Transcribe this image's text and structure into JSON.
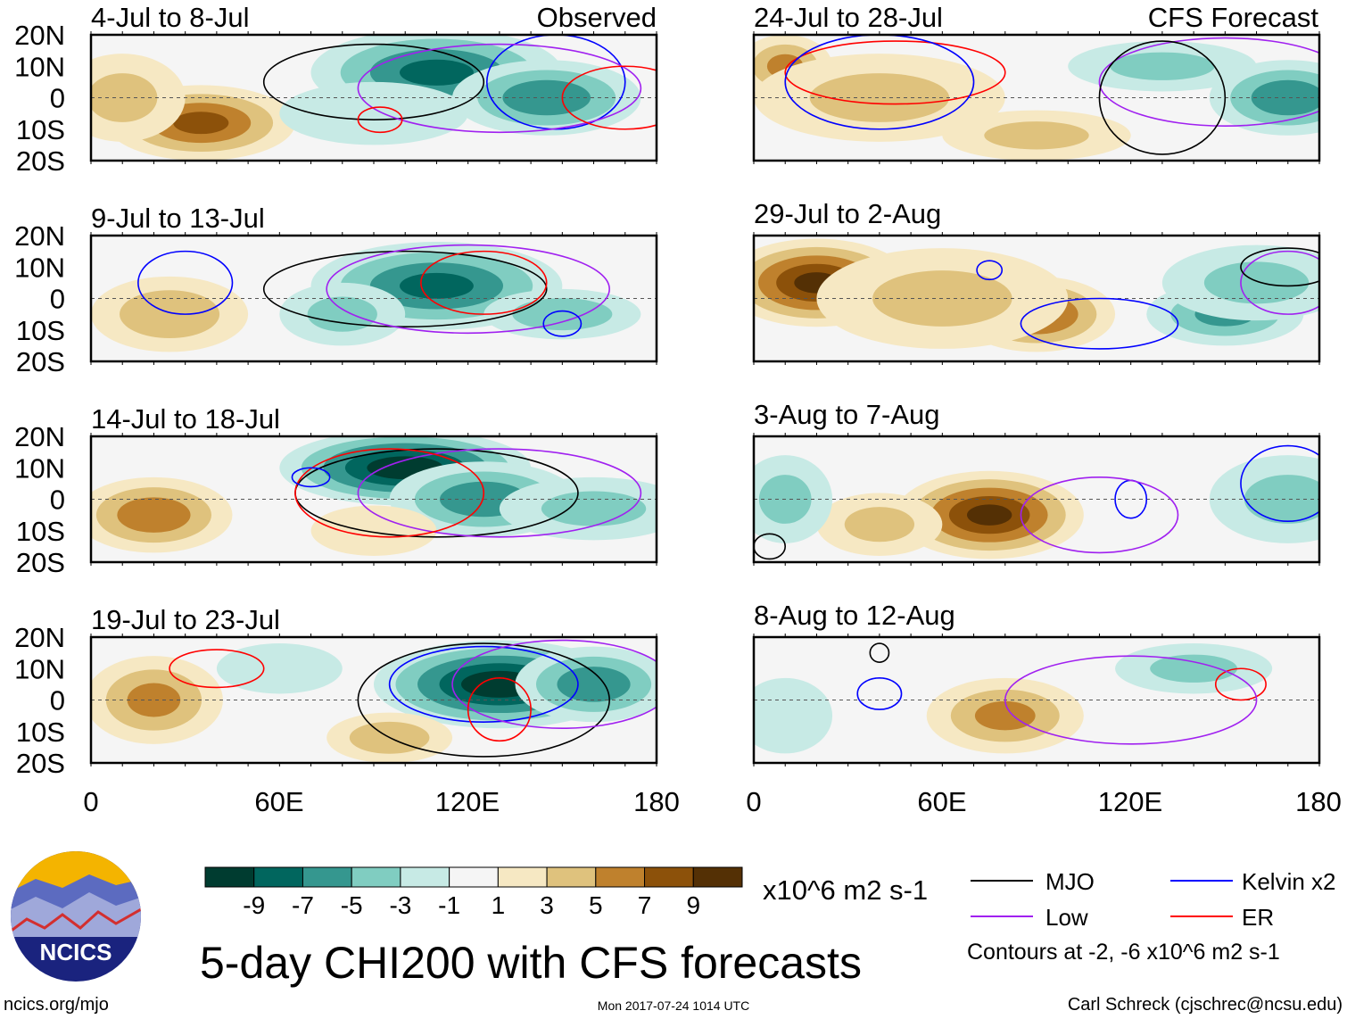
{
  "figure": {
    "title": "5-day CHI200 with CFS forecasts",
    "units": "x10^6 m2 s-1",
    "observed_label": "Observed",
    "forecast_label": "CFS Forecast",
    "site": "ncics.org/mjo",
    "timestamp": "Mon 2017-07-24 1014 UTC",
    "author": "Carl Schreck (cjschrec@ncsu.edu)",
    "logo_text": "NCICS",
    "contour_note": "Contours at -2, -6 x10^6 m2 s-1"
  },
  "legend": [
    {
      "label": "MJO",
      "color": "#000000"
    },
    {
      "label": "Kelvin x2",
      "color": "#0000ff"
    },
    {
      "label": "Low",
      "color": "#a020f0"
    },
    {
      "label": "ER",
      "color": "#ff0000"
    }
  ],
  "colorbar": {
    "colors": [
      "#003c30",
      "#01665e",
      "#35978f",
      "#80cdc1",
      "#c7eae5",
      "#f5f5f5",
      "#f6e8c3",
      "#dfc27d",
      "#bf812d",
      "#8c510a",
      "#543005"
    ],
    "labels": [
      "-9",
      "-7",
      "-5",
      "-3",
      "-1",
      "1",
      "3",
      "5",
      "7",
      "9"
    ]
  },
  "chart_data": {
    "type": "heatmap",
    "lat_labels": [
      "20N",
      "10N",
      "0",
      "10S",
      "20S"
    ],
    "lon_labels": [
      "0",
      "60E",
      "120E",
      "180"
    ],
    "lon_range": [
      0,
      180
    ],
    "lat_range": [
      -20,
      20
    ],
    "panels": [
      {
        "title": "4-Jul to 8-Jul",
        "blobs": [
          [
            110,
            8,
            -7,
            40,
            14
          ],
          [
            145,
            0,
            -6,
            30,
            12
          ],
          [
            35,
            -8,
            7,
            30,
            12
          ],
          [
            10,
            0,
            3,
            20,
            14
          ],
          [
            90,
            -5,
            -2,
            30,
            10
          ]
        ],
        "contours": [
          [
            "MJO",
            90,
            5,
            35,
            12
          ],
          [
            "Kelvin",
            148,
            5,
            22,
            15
          ],
          [
            "Low",
            130,
            3,
            45,
            14
          ],
          [
            "ER",
            92,
            -7,
            7,
            4
          ],
          [
            "ER",
            170,
            0,
            20,
            10
          ]
        ]
      },
      {
        "title": "9-Jul to 13-Jul",
        "blobs": [
          [
            110,
            4,
            -7,
            40,
            14
          ],
          [
            150,
            -5,
            -4,
            25,
            8
          ],
          [
            25,
            -5,
            4,
            25,
            12
          ],
          [
            80,
            -5,
            -3,
            20,
            10
          ]
        ],
        "contours": [
          [
            "MJO",
            100,
            3,
            45,
            12
          ],
          [
            "Kelvin",
            30,
            5,
            15,
            10
          ],
          [
            "Low",
            120,
            3,
            45,
            14
          ],
          [
            "ER",
            125,
            5,
            20,
            10
          ],
          [
            "Kelvin",
            150,
            -8,
            6,
            4
          ]
        ]
      },
      {
        "title": "14-Jul to 18-Jul",
        "blobs": [
          [
            100,
            10,
            -10,
            40,
            12
          ],
          [
            125,
            0,
            -6,
            30,
            12
          ],
          [
            160,
            -3,
            -3,
            30,
            10
          ],
          [
            20,
            -5,
            6,
            25,
            12
          ],
          [
            90,
            -10,
            2,
            20,
            8
          ]
        ],
        "contours": [
          [
            "MJO",
            110,
            2,
            45,
            14
          ],
          [
            "Low",
            130,
            2,
            45,
            14
          ],
          [
            "ER",
            95,
            2,
            30,
            14
          ],
          [
            "Kelvin",
            70,
            7,
            6,
            3
          ]
        ]
      },
      {
        "title": "19-Jul to 23-Jul",
        "blobs": [
          [
            130,
            5,
            -10,
            40,
            14
          ],
          [
            160,
            5,
            -6,
            25,
            12
          ],
          [
            20,
            0,
            5,
            22,
            14
          ],
          [
            95,
            -12,
            4,
            20,
            8
          ],
          [
            60,
            10,
            -2,
            20,
            8
          ]
        ],
        "contours": [
          [
            "Kelvin",
            125,
            5,
            30,
            12
          ],
          [
            "MJO",
            125,
            0,
            40,
            18
          ],
          [
            "Low",
            150,
            5,
            35,
            14
          ],
          [
            "ER",
            40,
            10,
            15,
            6
          ],
          [
            "ER",
            130,
            -3,
            10,
            10
          ]
        ]
      },
      {
        "title": "24-Jul to 28-Jul",
        "blobs": [
          [
            10,
            10,
            5,
            15,
            10
          ],
          [
            40,
            0,
            3,
            40,
            14
          ],
          [
            90,
            -12,
            3,
            30,
            8
          ],
          [
            170,
            0,
            -6,
            25,
            12
          ],
          [
            130,
            10,
            -3,
            30,
            8
          ]
        ],
        "contours": [
          [
            "ER",
            45,
            8,
            35,
            10
          ],
          [
            "Kelvin",
            40,
            5,
            30,
            15
          ],
          [
            "Low",
            150,
            5,
            40,
            14
          ],
          [
            "MJO",
            130,
            0,
            20,
            18
          ]
        ]
      },
      {
        "title": "29-Jul to 2-Aug",
        "blobs": [
          [
            20,
            5,
            9,
            30,
            14
          ],
          [
            90,
            -5,
            7,
            25,
            12
          ],
          [
            60,
            0,
            3,
            40,
            16
          ],
          [
            150,
            -5,
            -5,
            25,
            10
          ],
          [
            160,
            5,
            -3,
            30,
            12
          ]
        ],
        "contours": [
          [
            "Kelvin",
            75,
            9,
            4,
            3
          ],
          [
            "Kelvin",
            110,
            -8,
            25,
            8
          ],
          [
            "Low",
            170,
            5,
            15,
            10
          ],
          [
            "MJO",
            170,
            10,
            15,
            6
          ]
        ]
      },
      {
        "title": "3-Aug to 7-Aug",
        "blobs": [
          [
            75,
            -5,
            9,
            30,
            14
          ],
          [
            40,
            -8,
            3,
            20,
            10
          ],
          [
            10,
            0,
            -3,
            15,
            14
          ],
          [
            170,
            0,
            -3,
            25,
            14
          ]
        ],
        "contours": [
          [
            "Kelvin",
            120,
            0,
            5,
            6
          ],
          [
            "Low",
            110,
            -5,
            25,
            12
          ],
          [
            "Kelvin",
            170,
            5,
            15,
            12
          ],
          [
            "MJO",
            5,
            -15,
            5,
            4
          ]
        ]
      },
      {
        "title": "8-Aug to 12-Aug",
        "blobs": [
          [
            80,
            -5,
            5,
            25,
            12
          ],
          [
            140,
            10,
            -3,
            25,
            8
          ],
          [
            10,
            -5,
            -1,
            15,
            12
          ]
        ],
        "contours": [
          [
            "Kelvin",
            40,
            2,
            7,
            5
          ],
          [
            "ER",
            155,
            5,
            8,
            5
          ],
          [
            "Low",
            120,
            0,
            40,
            14
          ],
          [
            "MJO",
            40,
            15,
            3,
            3
          ]
        ]
      }
    ]
  }
}
